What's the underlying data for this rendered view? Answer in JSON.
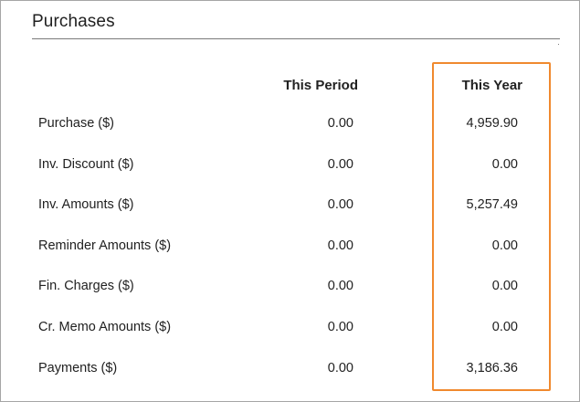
{
  "section": {
    "title": "Purchases"
  },
  "columns": {
    "period": "This Period",
    "year": "This Year"
  },
  "rows": [
    {
      "label": "Purchase ($)",
      "period": "0.00",
      "year": "4,959.90"
    },
    {
      "label": "Inv. Discount ($)",
      "period": "0.00",
      "year": "0.00"
    },
    {
      "label": "Inv. Amounts ($)",
      "period": "0.00",
      "year": "5,257.49"
    },
    {
      "label": "Reminder Amounts ($)",
      "period": "0.00",
      "year": "0.00"
    },
    {
      "label": "Fin. Charges ($)",
      "period": "0.00",
      "year": "0.00"
    },
    {
      "label": "Cr. Memo Amounts ($)",
      "period": "0.00",
      "year": "0.00"
    },
    {
      "label": "Payments ($)",
      "period": "0.00",
      "year": "3,186.36"
    }
  ],
  "highlight_color": "#f0892e"
}
